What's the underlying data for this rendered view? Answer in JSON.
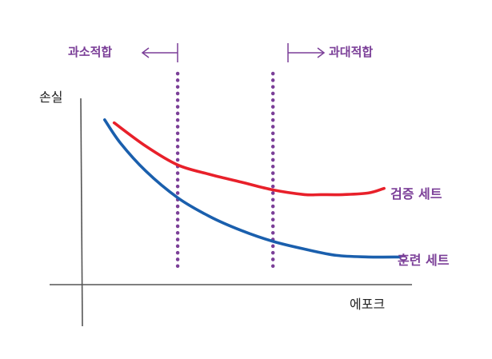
{
  "chart_data": {
    "type": "line",
    "xlabel": "에포크",
    "ylabel": "손실",
    "grid": false,
    "legend": "direct-labels-right",
    "xlim": [
      0,
      100
    ],
    "ylim": [
      0,
      100
    ],
    "series": [
      {
        "name": "검증 세트",
        "color": "#e8202a",
        "x": [
          10,
          20,
          30,
          40,
          50,
          60,
          70,
          75,
          82,
          90,
          95
        ],
        "y": [
          93,
          78,
          66,
          60,
          55,
          50,
          47,
          47,
          47,
          48,
          51
        ]
      },
      {
        "name": "훈련 세트",
        "color": "#1a5fad",
        "x": [
          7,
          12,
          20,
          30,
          40,
          50,
          60,
          70,
          80,
          90,
          100
        ],
        "y": [
          95,
          80,
          62,
          45,
          33,
          24,
          17,
          12,
          8,
          7,
          7
        ]
      }
    ],
    "annotations": [
      {
        "text": "과소적합",
        "direction": "left",
        "x": 30
      },
      {
        "text": "과대적합",
        "direction": "right",
        "x": 60
      }
    ],
    "colors": {
      "annotation": "#7b3f98",
      "axis": "#555555",
      "text": "#222222"
    }
  }
}
